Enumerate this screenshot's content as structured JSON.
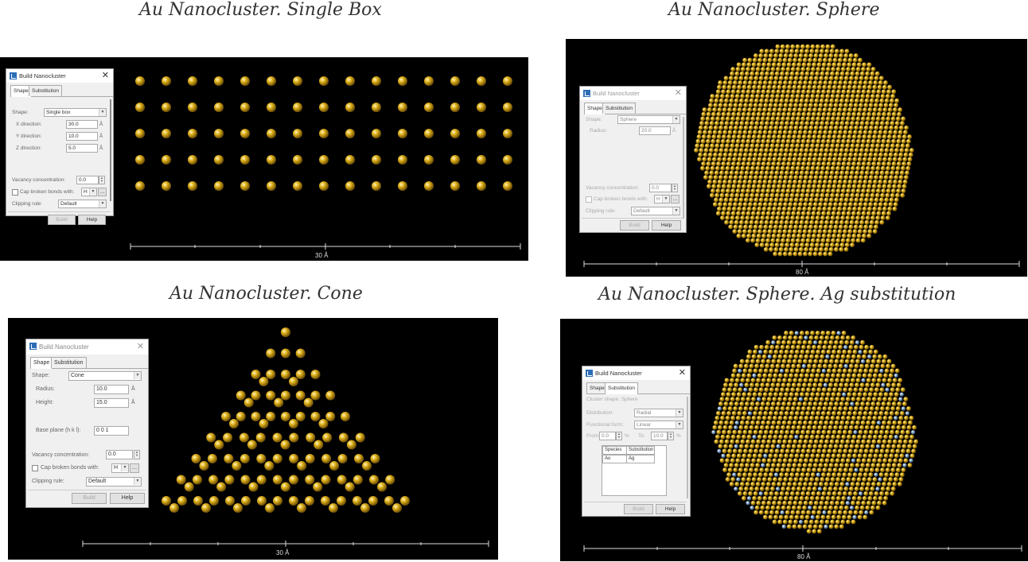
{
  "captions": {
    "box": "Au Nanocluster. Single Box",
    "sphere": "Au Nanocluster. Sphere",
    "cone": "Au Nanocluster. Cone",
    "sphere_ag": "Au Nanocluster. Sphere. Ag substitution"
  },
  "dialog_common": {
    "title": "Build Nanocluster",
    "tab_shape": "Shape",
    "tab_substitution": "Substitution",
    "shape_label": "Shape:",
    "vacancy_label": "Vacancy concentration:",
    "cap_label": "Cap broken bonds with:",
    "cap_value": "H",
    "clipping_label": "Clipping rule:",
    "clipping_value": "Default",
    "build_label": "Build",
    "help_label": "Help",
    "unit_angstrom": "Å"
  },
  "box_dialog": {
    "shape_value": "Single box",
    "x_label": "X direction:",
    "x_value": "30.0",
    "y_label": "Y direction:",
    "y_value": "10.0",
    "z_label": "Z direction:",
    "z_value": "5.0",
    "vacancy_value": "0.0"
  },
  "sphere_dialog": {
    "shape_value": "Sphere",
    "radius_label": "Radius:",
    "radius_value": "20.0",
    "vacancy_value": "0.0"
  },
  "cone_dialog": {
    "shape_value": "Cone",
    "radius_label": "Radius:",
    "radius_value": "10.0",
    "height_label": "Height:",
    "height_value": "15.0",
    "base_label": "Base plane (h k l):",
    "base_value": "0 0 1",
    "vacancy_value": "0.0"
  },
  "sub_dialog": {
    "cluster_shape": "Cluster shape: Sphere",
    "distribution_label": "Distribution:",
    "distribution_value": "Radial",
    "function_label": "Functional form:",
    "function_value": "Linear",
    "from_label": "From:",
    "from_value": "0.0",
    "to_label": "To:",
    "to_value": "10.0",
    "percent": "%",
    "col_species": "Species",
    "col_substitution": "Substitution",
    "species": "Au",
    "substitution": "Ag"
  },
  "scalebars": {
    "box": "30 Å",
    "sphere": "80 Å",
    "cone": "30 Å",
    "sphere_ag": "80 Å"
  },
  "colors": {
    "gold": "#e0b21c",
    "silver": "#8fb0d4",
    "viewport": "#000000"
  }
}
